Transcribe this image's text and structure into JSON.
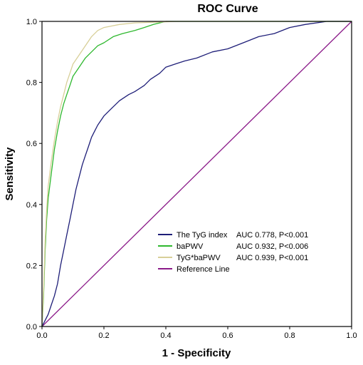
{
  "chart_data": {
    "type": "line",
    "title": "ROC Curve",
    "xlabel": "1 - Specificity",
    "ylabel": "Sensitivity",
    "xlim": [
      0,
      1
    ],
    "ylim": [
      0,
      1
    ],
    "x_ticks": [
      "0.0",
      "0.2",
      "0.4",
      "0.6",
      "0.8",
      "1.0"
    ],
    "y_ticks": [
      "0.0",
      "0.2",
      "0.4",
      "0.6",
      "0.8",
      "1.0"
    ],
    "grid": false,
    "legend_position": "bottom-right",
    "series": [
      {
        "name": "The TyG index",
        "legend_stat": "AUC 0.778, P<0.001",
        "color": "#1e1e78",
        "points": [
          [
            0,
            0
          ],
          [
            0.01,
            0.02
          ],
          [
            0.02,
            0.04
          ],
          [
            0.03,
            0.07
          ],
          [
            0.04,
            0.1
          ],
          [
            0.05,
            0.14
          ],
          [
            0.06,
            0.2
          ],
          [
            0.07,
            0.25
          ],
          [
            0.08,
            0.3
          ],
          [
            0.09,
            0.35
          ],
          [
            0.1,
            0.4
          ],
          [
            0.11,
            0.45
          ],
          [
            0.12,
            0.49
          ],
          [
            0.13,
            0.53
          ],
          [
            0.14,
            0.56
          ],
          [
            0.15,
            0.59
          ],
          [
            0.16,
            0.62
          ],
          [
            0.17,
            0.64
          ],
          [
            0.18,
            0.66
          ],
          [
            0.2,
            0.69
          ],
          [
            0.22,
            0.71
          ],
          [
            0.25,
            0.74
          ],
          [
            0.28,
            0.76
          ],
          [
            0.3,
            0.77
          ],
          [
            0.33,
            0.79
          ],
          [
            0.35,
            0.81
          ],
          [
            0.38,
            0.83
          ],
          [
            0.4,
            0.85
          ],
          [
            0.43,
            0.86
          ],
          [
            0.46,
            0.87
          ],
          [
            0.5,
            0.88
          ],
          [
            0.55,
            0.9
          ],
          [
            0.6,
            0.91
          ],
          [
            0.65,
            0.93
          ],
          [
            0.7,
            0.95
          ],
          [
            0.75,
            0.96
          ],
          [
            0.8,
            0.98
          ],
          [
            0.85,
            0.99
          ],
          [
            0.92,
            1.0
          ],
          [
            1.0,
            1.0
          ]
        ]
      },
      {
        "name": "baPWV",
        "legend_stat": "AUC 0.932, P<0.006",
        "color": "#2eb82e",
        "points": [
          [
            0,
            0
          ],
          [
            0.005,
            0.1
          ],
          [
            0.01,
            0.25
          ],
          [
            0.015,
            0.35
          ],
          [
            0.02,
            0.42
          ],
          [
            0.03,
            0.5
          ],
          [
            0.04,
            0.58
          ],
          [
            0.05,
            0.64
          ],
          [
            0.06,
            0.69
          ],
          [
            0.07,
            0.73
          ],
          [
            0.08,
            0.76
          ],
          [
            0.09,
            0.79
          ],
          [
            0.1,
            0.82
          ],
          [
            0.12,
            0.85
          ],
          [
            0.14,
            0.88
          ],
          [
            0.16,
            0.9
          ],
          [
            0.18,
            0.92
          ],
          [
            0.2,
            0.93
          ],
          [
            0.23,
            0.95
          ],
          [
            0.26,
            0.96
          ],
          [
            0.3,
            0.97
          ],
          [
            0.33,
            0.98
          ],
          [
            0.36,
            0.99
          ],
          [
            0.4,
            1.0
          ],
          [
            1.0,
            1.0
          ]
        ]
      },
      {
        "name": "TyG*baPWV",
        "legend_stat": "AUC 0.939, P<0.001",
        "color": "#d8cf98",
        "points": [
          [
            0,
            0
          ],
          [
            0.005,
            0.12
          ],
          [
            0.01,
            0.28
          ],
          [
            0.015,
            0.38
          ],
          [
            0.02,
            0.46
          ],
          [
            0.03,
            0.54
          ],
          [
            0.04,
            0.61
          ],
          [
            0.05,
            0.67
          ],
          [
            0.06,
            0.72
          ],
          [
            0.07,
            0.76
          ],
          [
            0.08,
            0.8
          ],
          [
            0.09,
            0.83
          ],
          [
            0.1,
            0.86
          ],
          [
            0.12,
            0.89
          ],
          [
            0.14,
            0.92
          ],
          [
            0.16,
            0.95
          ],
          [
            0.18,
            0.97
          ],
          [
            0.2,
            0.98
          ],
          [
            0.25,
            0.99
          ],
          [
            0.3,
            0.995
          ],
          [
            0.44,
            1.0
          ],
          [
            1.0,
            1.0
          ]
        ]
      },
      {
        "name": "Reference Line",
        "legend_stat": "",
        "color": "#8b1a89",
        "points": [
          [
            0,
            0
          ],
          [
            1,
            1
          ]
        ]
      }
    ]
  }
}
